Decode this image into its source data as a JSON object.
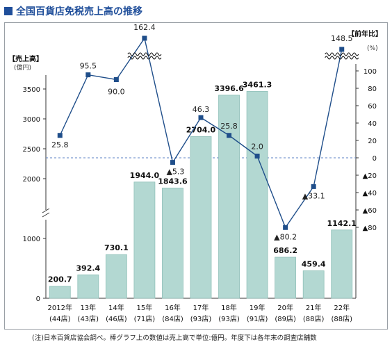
{
  "title": "全国百貨店免税売上高の推移",
  "note": "(注)日本百貨店協会調べ。棒グラフ上の数値は売上高で単位:億円。年度下は各年末の調査店舗数",
  "colors": {
    "title": "#1f4e9a",
    "bar": "#b3d8d2",
    "bar_edge": "#8fc0b8",
    "line": "#1f4e8a",
    "zero_line": "#5b82c6"
  },
  "chart_data": {
    "type": "bar+line",
    "title": "全国百貨店免税売上高の推移",
    "left_axis": {
      "label": "【売上高】",
      "unit": "(億円)",
      "ylim": [
        0,
        3500
      ],
      "ticks": [
        0,
        1000,
        2000,
        2500,
        3000,
        3500
      ]
    },
    "right_axis": {
      "label": "【前年比】",
      "unit": "(%)",
      "ylim": [
        -80,
        100
      ],
      "ticks": [
        100,
        80,
        60,
        40,
        20,
        0,
        -20,
        -40,
        -60,
        -80
      ],
      "tick_labels": [
        "100",
        "80",
        "60",
        "40",
        "20",
        "0",
        "▲20",
        "▲40",
        "▲60",
        "▲80"
      ]
    },
    "categories": [
      "2012年",
      "13年",
      "14年",
      "15年",
      "16年",
      "17年",
      "18年",
      "19年",
      "20年",
      "21年",
      "22年"
    ],
    "store_counts": [
      "(44店)",
      "(43店)",
      "(46店)",
      "(71店)",
      "(84店)",
      "(93店)",
      "(93店)",
      "(91店)",
      "(89店)",
      "(88店)",
      "(88店)"
    ],
    "series": [
      {
        "type": "bar",
        "axis": "left",
        "values": [
          200.7,
          392.4,
          730.1,
          1944.0,
          1843.6,
          2704.0,
          3396.6,
          3461.3,
          686.2,
          459.4,
          1142.1
        ],
        "labels": [
          "200.7",
          "392.4",
          "730.1",
          "1944.0",
          "1843.6",
          "2704.0",
          "3396.6",
          "3461.3",
          "686.2",
          "459.4",
          "1142.1"
        ]
      },
      {
        "type": "line",
        "axis": "right",
        "values": [
          25.8,
          95.5,
          90.0,
          162.4,
          -5.3,
          46.3,
          25.8,
          2.0,
          -80.2,
          -33.1,
          148.5
        ],
        "labels": [
          "25.8",
          "95.5",
          "90.0",
          "162.4",
          "▲5.3",
          "46.3",
          "25.8",
          "2.0",
          "▲80.2",
          "▲33.1",
          "148.5"
        ],
        "axis_break_above": 100
      }
    ]
  }
}
